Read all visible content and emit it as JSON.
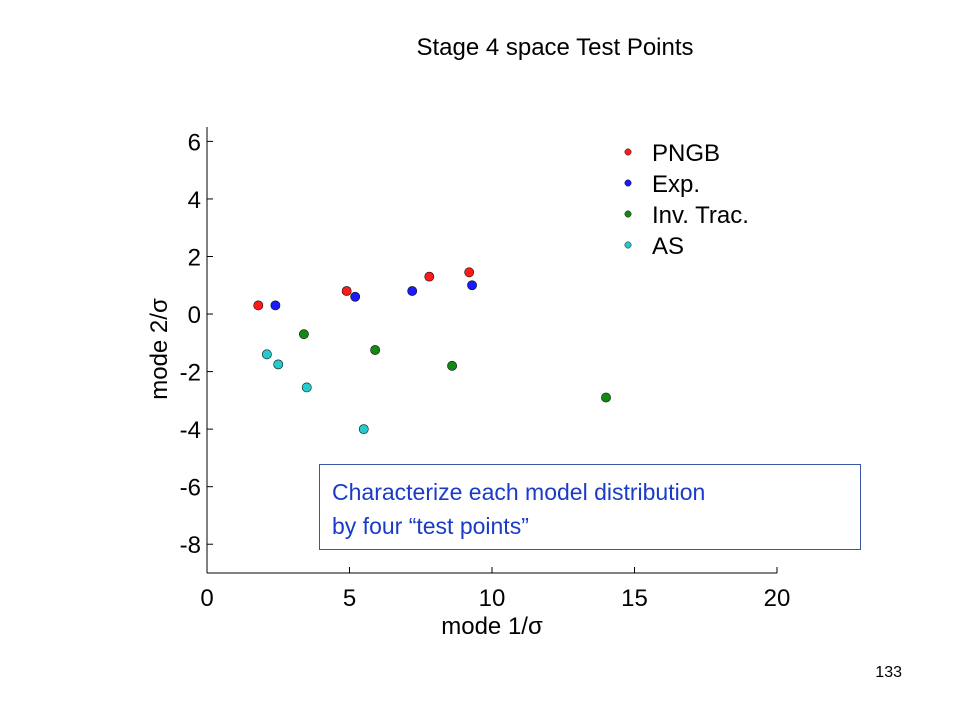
{
  "slide": {
    "title": "Stage 4 space Test Points",
    "page_number": "133",
    "annotation_line1": "Characterize each model distribution",
    "annotation_line2": "by four “test points”"
  },
  "colors": {
    "PNGB": "#ff1a1a",
    "Exp.": "#1a1aff",
    "Inv. Trac.": "#128a12",
    "AS": "#22cccc"
  },
  "chart_data": {
    "type": "scatter",
    "title": "",
    "xlabel": "mode 1/σ",
    "ylabel": "mode 2/σ",
    "xlim": [
      0,
      20
    ],
    "ylim": [
      -9,
      6.5
    ],
    "xticks": [
      0,
      5,
      10,
      15,
      20
    ],
    "yticks": [
      6,
      4,
      2,
      0,
      -2,
      -4,
      -6,
      -8
    ],
    "grid": false,
    "legend_position": "top-right",
    "series": [
      {
        "name": "PNGB",
        "points": [
          [
            1.8,
            0.3
          ],
          [
            4.9,
            0.8
          ],
          [
            7.8,
            1.3
          ],
          [
            9.2,
            1.45
          ]
        ]
      },
      {
        "name": "Exp.",
        "points": [
          [
            2.4,
            0.3
          ],
          [
            5.2,
            0.6
          ],
          [
            7.2,
            0.8
          ],
          [
            9.3,
            1.0
          ]
        ]
      },
      {
        "name": "Inv. Trac.",
        "points": [
          [
            3.4,
            -0.7
          ],
          [
            5.9,
            -1.25
          ],
          [
            8.6,
            -1.8
          ],
          [
            14.0,
            -2.9
          ]
        ]
      },
      {
        "name": "AS",
        "points": [
          [
            2.1,
            -1.4
          ],
          [
            2.5,
            -1.75
          ],
          [
            3.5,
            -2.55
          ],
          [
            5.5,
            -4.0
          ]
        ]
      }
    ]
  }
}
